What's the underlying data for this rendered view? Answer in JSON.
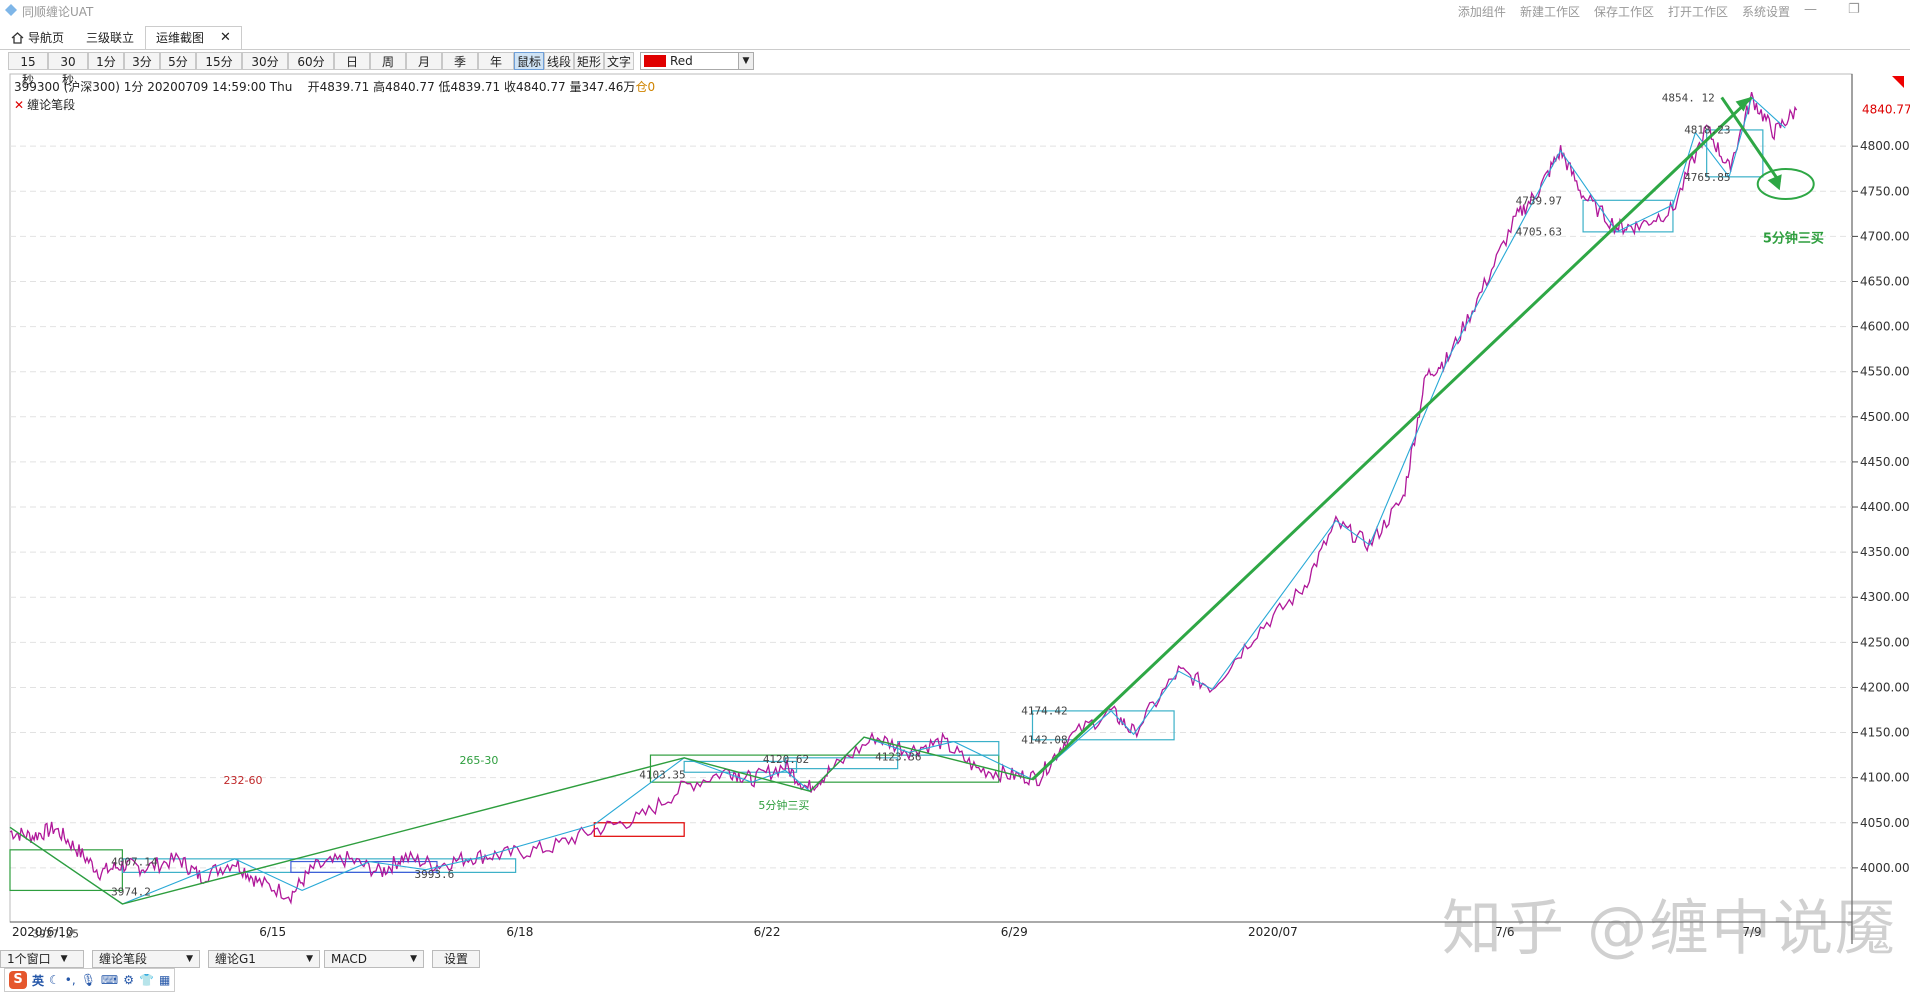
{
  "app": {
    "title": "同顺缠论UAT",
    "menu": [
      "添加组件",
      "新建工作区",
      "保存工作区",
      "打开工作区",
      "系统设置"
    ],
    "win_min": "—",
    "win_restore": "❐"
  },
  "tabs": [
    {
      "label": "导航页",
      "icon": "home-icon"
    },
    {
      "label": "三级联立"
    },
    {
      "label": "运维截图",
      "active": true,
      "close": "✕"
    }
  ],
  "periods": [
    "15秒",
    "30秒",
    "1分",
    "3分",
    "5分",
    "15分",
    "30分",
    "60分",
    "日",
    "周",
    "月",
    "季",
    "年"
  ],
  "tools": [
    {
      "label": "鼠标",
      "selected": true
    },
    {
      "label": "线段"
    },
    {
      "label": "矩形"
    },
    {
      "label": "文字"
    }
  ],
  "color_picker": {
    "value": "Red",
    "color": "#e00000"
  },
  "quote": {
    "symbol": "399300 (沪深300)",
    "period": "1分",
    "datetime": "20200709 14:59:00 Thu",
    "open": "开4839.71",
    "high": "高4840.77",
    "low": "低4839.71",
    "close": "收4840.77",
    "volume": "量347.46万",
    "position": "仓0"
  },
  "indicator_label": "缠论笔段",
  "bottom_bar": [
    {
      "label": "1个窗口",
      "dropdown": true
    },
    {
      "label": "缠论笔段",
      "dropdown": true
    },
    {
      "label": "缠论G1",
      "dropdown": true
    },
    {
      "label": "MACD",
      "dropdown": true
    },
    {
      "label": "设置",
      "dropdown": false
    }
  ],
  "ime": {
    "lang": "英"
  },
  "watermark": "知乎 @缠中说魇",
  "chart_data": {
    "type": "line",
    "y_ticks": [
      4000,
      4050,
      4100,
      4150,
      4200,
      4250,
      4300,
      4350,
      4400,
      4450,
      4500,
      4550,
      4600,
      4650,
      4700,
      4750,
      4800
    ],
    "y_tick_labels": [
      "4000.00",
      "4050.00",
      "4100.00",
      "4150.00",
      "4200.00",
      "4250.00",
      "4300.00",
      "4350.00",
      "4400.00",
      "4450.00",
      "4500.00",
      "4550.00",
      "4600.00",
      "4650.00",
      "4700.00",
      "4750.00",
      "4800.00"
    ],
    "ylim": [
      3940,
      4880
    ],
    "x_labels": [
      "2020/6/10",
      "6/15",
      "6/18",
      "6/22",
      "6/29",
      "2020/07",
      "7/6",
      "7/9"
    ],
    "x_label_positions": [
      0,
      0.11,
      0.22,
      0.33,
      0.44,
      0.55,
      0.66,
      0.77
    ],
    "last_price": "4840.77",
    "price_path": [
      [
        0.0,
        4040
      ],
      [
        0.01,
        4035
      ],
      [
        0.02,
        4044
      ],
      [
        0.03,
        4020
      ],
      [
        0.04,
        3995
      ],
      [
        0.05,
        4003
      ],
      [
        0.06,
        4000
      ],
      [
        0.075,
        4010
      ],
      [
        0.085,
        3990
      ],
      [
        0.1,
        4007
      ],
      [
        0.11,
        3985
      ],
      [
        0.125,
        3970
      ],
      [
        0.135,
        4000
      ],
      [
        0.15,
        4010
      ],
      [
        0.165,
        3995
      ],
      [
        0.175,
        4012
      ],
      [
        0.19,
        4003
      ],
      [
        0.205,
        4012
      ],
      [
        0.22,
        4015
      ],
      [
        0.24,
        4022
      ],
      [
        0.26,
        4042
      ],
      [
        0.28,
        4055
      ],
      [
        0.3,
        4090
      ],
      [
        0.32,
        4108
      ],
      [
        0.33,
        4098
      ],
      [
        0.345,
        4113
      ],
      [
        0.355,
        4088
      ],
      [
        0.365,
        4108
      ],
      [
        0.385,
        4145
      ],
      [
        0.4,
        4130
      ],
      [
        0.415,
        4140
      ],
      [
        0.43,
        4110
      ],
      [
        0.445,
        4103
      ],
      [
        0.458,
        4100
      ],
      [
        0.47,
        4142
      ],
      [
        0.49,
        4174
      ],
      [
        0.5,
        4150
      ],
      [
        0.52,
        4218
      ],
      [
        0.535,
        4200
      ],
      [
        0.555,
        4262
      ],
      [
        0.575,
        4308
      ],
      [
        0.59,
        4382
      ],
      [
        0.605,
        4358
      ],
      [
        0.62,
        4410
      ],
      [
        0.63,
        4545
      ],
      [
        0.64,
        4565
      ],
      [
        0.655,
        4640
      ],
      [
        0.67,
        4720
      ],
      [
        0.68,
        4750
      ],
      [
        0.69,
        4795
      ],
      [
        0.7,
        4745
      ],
      [
        0.715,
        4710
      ],
      [
        0.725,
        4712
      ],
      [
        0.74,
        4730
      ],
      [
        0.755,
        4820
      ],
      [
        0.765,
        4775
      ],
      [
        0.775,
        4854
      ],
      [
        0.785,
        4815
      ],
      [
        0.795,
        4840
      ]
    ],
    "bi_points": [
      [
        0.0,
        4045
      ],
      [
        0.05,
        3960
      ],
      [
        0.1,
        4010
      ],
      [
        0.13,
        3975
      ],
      [
        0.16,
        4007
      ],
      [
        0.185,
        3998
      ],
      [
        0.21,
        4012
      ],
      [
        0.26,
        4048
      ],
      [
        0.3,
        4122
      ],
      [
        0.33,
        4095
      ],
      [
        0.345,
        4108
      ],
      [
        0.356,
        4085
      ],
      [
        0.38,
        4145
      ],
      [
        0.4,
        4128
      ],
      [
        0.42,
        4140
      ],
      [
        0.455,
        4098
      ],
      [
        0.49,
        4174
      ],
      [
        0.5,
        4148
      ],
      [
        0.52,
        4218
      ],
      [
        0.535,
        4198
      ],
      [
        0.59,
        4385
      ],
      [
        0.605,
        4358
      ],
      [
        0.64,
        4565
      ],
      [
        0.69,
        4795
      ],
      [
        0.715,
        4705
      ],
      [
        0.74,
        4735
      ],
      [
        0.75,
        4815
      ],
      [
        0.765,
        4766
      ],
      [
        0.775,
        4854
      ],
      [
        0.79,
        4820
      ]
    ],
    "segment_points": [
      [
        0.0,
        4045
      ],
      [
        0.05,
        3960
      ],
      [
        0.3,
        4122
      ],
      [
        0.356,
        4085
      ],
      [
        0.38,
        4145
      ],
      [
        0.455,
        4098
      ],
      [
        0.775,
        4854
      ]
    ],
    "zhongshu": [
      {
        "x1": 0.0,
        "x2": 0.05,
        "y1": 3975,
        "y2": 4020,
        "color": "#2e9e3e"
      },
      {
        "x1": 0.05,
        "x2": 0.225,
        "y1": 3995,
        "y2": 4010,
        "color": "#3bb0c8"
      },
      {
        "x1": 0.125,
        "x2": 0.19,
        "y1": 3995,
        "y2": 4007,
        "color": "#3f5fd8"
      },
      {
        "x1": 0.26,
        "x2": 0.3,
        "y1": 4035,
        "y2": 4050,
        "color": "#e00000"
      },
      {
        "x1": 0.285,
        "x2": 0.44,
        "y1": 4095,
        "y2": 4125,
        "color": "#2e9e3e"
      },
      {
        "x1": 0.3,
        "x2": 0.35,
        "y1": 4106,
        "y2": 4118,
        "color": "#3bb0c8"
      },
      {
        "x1": 0.345,
        "x2": 0.395,
        "y1": 4110,
        "y2": 4122,
        "color": "#3bb0c8"
      },
      {
        "x1": 0.395,
        "x2": 0.44,
        "y1": 4125,
        "y2": 4140,
        "color": "#3bb0c8"
      },
      {
        "x1": 0.455,
        "x2": 0.518,
        "y1": 4142,
        "y2": 4174,
        "color": "#3bb0c8"
      },
      {
        "x1": 0.7,
        "x2": 0.74,
        "y1": 4705,
        "y2": 4740,
        "color": "#3bb0c8"
      },
      {
        "x1": 0.755,
        "x2": 0.78,
        "y1": 4766,
        "y2": 4818,
        "color": "#3bb0c8"
      }
    ],
    "price_labels": [
      {
        "x": 0.01,
        "y": 3927.25,
        "text": "3927.25"
      },
      {
        "x": 0.045,
        "y": 4007.14,
        "text": "4007.14"
      },
      {
        "x": 0.045,
        "y": 3974,
        "text": "3974.2"
      },
      {
        "x": 0.18,
        "y": 3993,
        "text": "3993.6"
      },
      {
        "x": 0.28,
        "y": 4103.35,
        "text": "4103.35"
      },
      {
        "x": 0.335,
        "y": 4120.62,
        "text": "4120.62"
      },
      {
        "x": 0.385,
        "y": 4123.36,
        "text": "4123.36"
      },
      {
        "x": 0.45,
        "y": 4174.42,
        "text": "4174.42"
      },
      {
        "x": 0.45,
        "y": 4142.08,
        "text": "4142.08"
      },
      {
        "x": 0.67,
        "y": 4705.63,
        "text": "4705.63"
      },
      {
        "x": 0.67,
        "y": 4739.97,
        "text": "4739.97"
      },
      {
        "x": 0.745,
        "y": 4765.85,
        "text": "4765.85"
      },
      {
        "x": 0.745,
        "y": 4818.23,
        "text": "4818.23"
      },
      {
        "x": 0.735,
        "y": 4854.12,
        "text": "4854. 12"
      }
    ],
    "annotations": [
      {
        "x": 0.095,
        "y": 4093,
        "text": "232-60",
        "color": "#c0282a"
      },
      {
        "x": 0.2,
        "y": 4115,
        "text": "265-30",
        "color": "#2e9e3e"
      },
      {
        "x": 0.333,
        "y": 4065,
        "text": "5分钟三买",
        "color": "#2e9e3e"
      },
      {
        "x": 0.78,
        "y": 4693,
        "text": "5分钟三买",
        "color": "#2e9e3e",
        "bold": true
      }
    ]
  }
}
